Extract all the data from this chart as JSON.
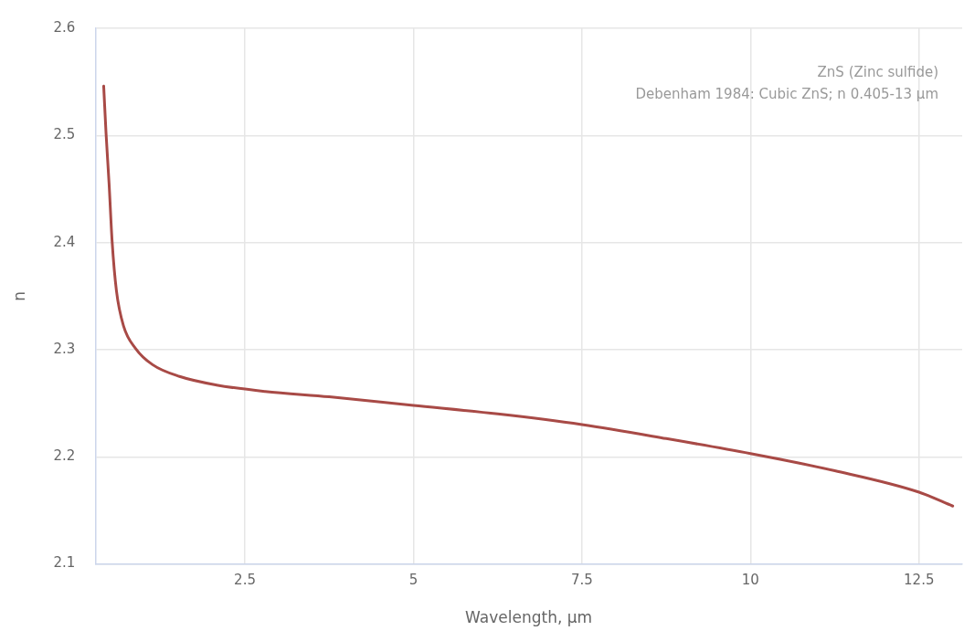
{
  "chart_data": {
    "type": "line",
    "xlabel": "Wavelength, µm",
    "ylabel": "n",
    "annotations": [
      "ZnS (Zinc sulfide)",
      "Debenham 1984: Cubic ZnS; n 0.405-13 µm"
    ],
    "x": [
      0.405,
      0.44,
      0.485,
      0.53,
      0.594,
      0.7,
      0.88,
      1.13,
      1.53,
      2.08,
      2.8,
      3.75,
      5,
      6.25,
      7.5,
      8.75,
      10,
      11.25,
      12.5,
      13
    ],
    "series": [
      {
        "color": "#a84a46",
        "values": [
          2.546,
          2.502,
          2.455,
          2.401,
          2.355,
          2.322,
          2.301,
          2.286,
          2.275,
          2.267,
          2.261,
          2.256,
          2.248,
          2.24,
          2.23,
          2.217,
          2.203,
          2.187,
          2.167,
          2.154
        ]
      }
    ],
    "xlim": [
      0.28,
      13.14
    ],
    "ylim": [
      2.1,
      2.6
    ],
    "xticks": [
      2.5,
      5,
      7.5,
      10,
      12.5
    ],
    "yticks": [
      2.1,
      2.2,
      2.3,
      2.4,
      2.5,
      2.6
    ],
    "grid": true,
    "legend": false,
    "marker": "none",
    "line_style": "solid"
  }
}
